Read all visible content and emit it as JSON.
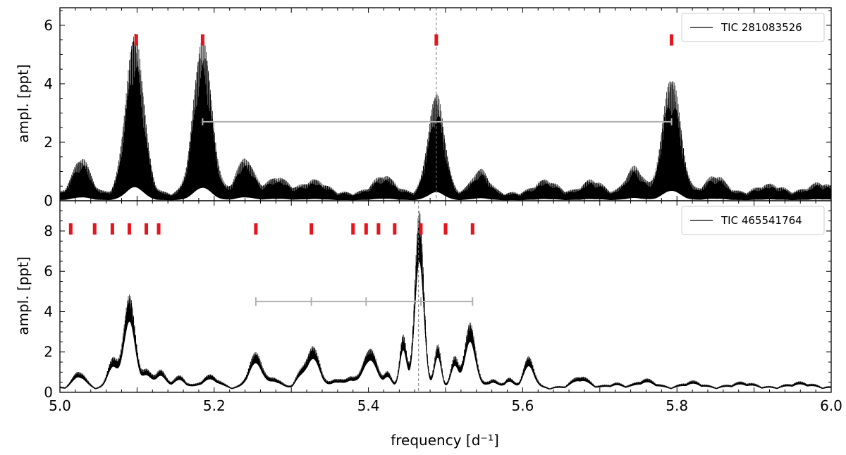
{
  "chart_data": [
    {
      "type": "line",
      "panel": "top",
      "legend": "TIC 281083526",
      "legend_position": "top-right",
      "ylabel": "ampl. [ppt]",
      "xlim": [
        5.0,
        6.0
      ],
      "ylim": [
        0,
        6.6
      ],
      "yticks": [
        0,
        2,
        4,
        6
      ],
      "ytick_labels": [
        "0",
        "2",
        "4",
        "6"
      ],
      "dashed_line_x": 5.488,
      "marker_color": "#e8141c",
      "marker_y": 5.5,
      "markers_x": [
        5.099,
        5.185,
        5.488,
        5.793
      ],
      "spacing_bar": {
        "y": 2.7,
        "x": [
          5.185,
          5.793
        ],
        "color": "#b0b0b0"
      },
      "peaks": [
        {
          "x": 5.028,
          "amp": 1.2,
          "w": 0.011
        },
        {
          "x": 5.097,
          "amp": 5.5,
          "w": 0.0115
        },
        {
          "x": 5.185,
          "amp": 5.3,
          "w": 0.0115
        },
        {
          "x": 5.24,
          "amp": 1.2,
          "w": 0.011
        },
        {
          "x": 5.282,
          "amp": 0.55,
          "w": 0.013
        },
        {
          "x": 5.33,
          "amp": 0.45,
          "w": 0.015
        },
        {
          "x": 5.42,
          "amp": 0.6,
          "w": 0.014
        },
        {
          "x": 5.488,
          "amp": 3.4,
          "w": 0.0105
        },
        {
          "x": 5.545,
          "amp": 0.8,
          "w": 0.011
        },
        {
          "x": 5.63,
          "amp": 0.45,
          "w": 0.014
        },
        {
          "x": 5.69,
          "amp": 0.45,
          "w": 0.013
        },
        {
          "x": 5.745,
          "amp": 0.9,
          "w": 0.011
        },
        {
          "x": 5.793,
          "amp": 4.0,
          "w": 0.0115
        },
        {
          "x": 5.85,
          "amp": 0.6,
          "w": 0.013
        },
        {
          "x": 5.92,
          "amp": 0.3,
          "w": 0.016
        },
        {
          "x": 5.985,
          "amp": 0.35,
          "w": 0.015
        }
      ],
      "baseline": 0.3
    },
    {
      "type": "line",
      "panel": "bottom",
      "legend": "TIC 465541764",
      "legend_position": "top-right",
      "xlabel": "frequency [d⁻¹]",
      "ylabel": "ampl. [ppt]",
      "xlim": [
        5.0,
        6.0
      ],
      "ylim": [
        0,
        9.5
      ],
      "yticks": [
        0,
        2,
        4,
        6,
        8
      ],
      "ytick_labels": [
        "0",
        "2",
        "4",
        "6",
        "8"
      ],
      "xticks": [
        5.0,
        5.2,
        5.4,
        5.6,
        5.8,
        6.0
      ],
      "xtick_labels": [
        "5.0",
        "5.2",
        "5.4",
        "5.6",
        "5.8",
        "6.0"
      ],
      "dashed_line_x": 5.465,
      "marker_color": "#e8141c",
      "marker_y": 8.1,
      "markers_x": [
        5.014,
        5.045,
        5.068,
        5.09,
        5.112,
        5.128,
        5.254,
        5.326,
        5.38,
        5.397,
        5.413,
        5.434,
        5.468,
        5.5,
        5.535
      ],
      "spacing_bar": {
        "y": 4.5,
        "ticks_x": [
          5.254,
          5.326,
          5.397,
          5.468,
          5.535
        ],
        "color": "#b0b0b0"
      },
      "peaks": [
        {
          "x": 5.025,
          "amp": 0.8,
          "w": 0.008
        },
        {
          "x": 5.068,
          "amp": 1.45,
          "w": 0.006
        },
        {
          "x": 5.09,
          "amp": 4.6,
          "w": 0.0075
        },
        {
          "x": 5.112,
          "amp": 0.8,
          "w": 0.006
        },
        {
          "x": 5.13,
          "amp": 0.85,
          "w": 0.007
        },
        {
          "x": 5.155,
          "amp": 0.55,
          "w": 0.008
        },
        {
          "x": 5.195,
          "amp": 0.6,
          "w": 0.011
        },
        {
          "x": 5.254,
          "amp": 1.7,
          "w": 0.009
        },
        {
          "x": 5.28,
          "amp": 0.45,
          "w": 0.007
        },
        {
          "x": 5.31,
          "amp": 0.5,
          "w": 0.006
        },
        {
          "x": 5.328,
          "amp": 2.0,
          "w": 0.009
        },
        {
          "x": 5.36,
          "amp": 0.45,
          "w": 0.007
        },
        {
          "x": 5.378,
          "amp": 0.5,
          "w": 0.006
        },
        {
          "x": 5.402,
          "amp": 1.95,
          "w": 0.009
        },
        {
          "x": 5.425,
          "amp": 0.7,
          "w": 0.005
        },
        {
          "x": 5.445,
          "amp": 2.6,
          "w": 0.0045
        },
        {
          "x": 5.466,
          "amp": 8.7,
          "w": 0.0058
        },
        {
          "x": 5.49,
          "amp": 2.1,
          "w": 0.0045
        },
        {
          "x": 5.512,
          "amp": 1.5,
          "w": 0.005
        },
        {
          "x": 5.532,
          "amp": 3.2,
          "w": 0.007
        },
        {
          "x": 5.56,
          "amp": 0.4,
          "w": 0.007
        },
        {
          "x": 5.582,
          "amp": 0.45,
          "w": 0.006
        },
        {
          "x": 5.608,
          "amp": 1.5,
          "w": 0.007
        },
        {
          "x": 5.675,
          "amp": 0.55,
          "w": 0.011
        },
        {
          "x": 5.72,
          "amp": 0.2,
          "w": 0.01
        },
        {
          "x": 5.76,
          "amp": 0.4,
          "w": 0.012
        },
        {
          "x": 5.82,
          "amp": 0.3,
          "w": 0.012
        },
        {
          "x": 5.885,
          "amp": 0.25,
          "w": 0.015
        },
        {
          "x": 5.96,
          "amp": 0.25,
          "w": 0.015
        }
      ],
      "baseline": 0.3
    }
  ]
}
